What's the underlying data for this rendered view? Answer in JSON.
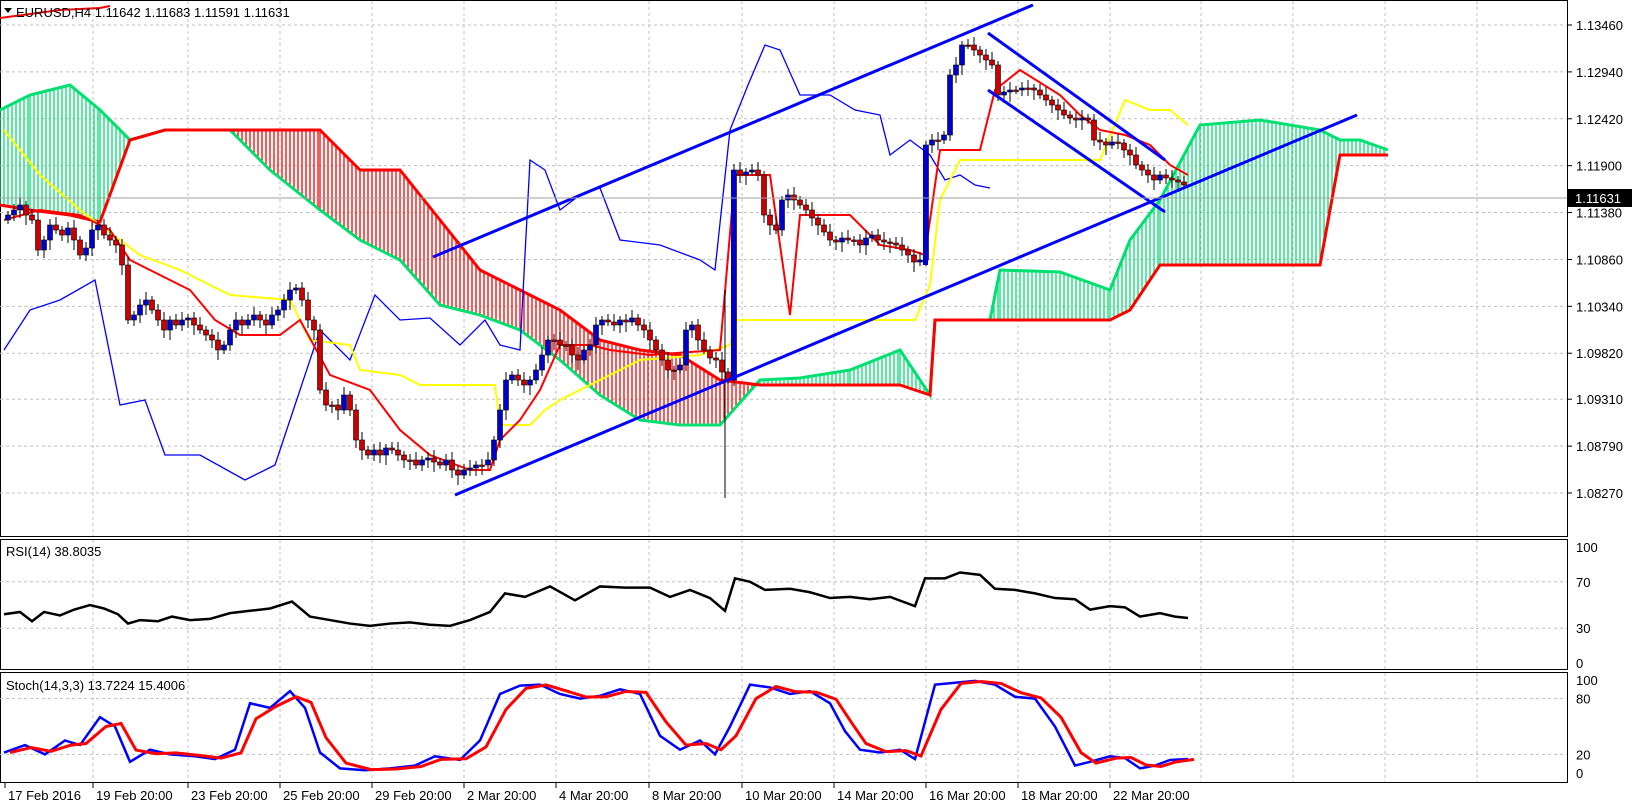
{
  "main_panel": {
    "symbol_line": "EURUSD,H4  1.11642 1.11683 1.11591 1.11631",
    "current_price": "1.11631",
    "price_labels": [
      "1.13460",
      "1.12940",
      "1.12420",
      "1.11900",
      "1.11380",
      "1.10860",
      "1.10340",
      "1.09820",
      "1.09310",
      "1.08790",
      "1.08270"
    ]
  },
  "rsi_panel": {
    "label": "RSI(14) 38.8035",
    "levels": [
      "100",
      "70",
      "30",
      "0"
    ]
  },
  "stoch_panel": {
    "label": "Stoch(14,3,3) 13.7224 15.4006",
    "levels": [
      "100",
      "80",
      "20",
      "0"
    ]
  },
  "time_axis": {
    "labels": [
      "17 Feb 2016",
      "19 Feb 20:00",
      "23 Feb 20:00",
      "25 Feb 20:00",
      "29 Feb 20:00",
      "2 Mar 20:00",
      "4 Mar 20:00",
      "8 Mar 20:00",
      "10 Mar 20:00",
      "14 Mar 20:00",
      "16 Mar 20:00",
      "18 Mar 20:00",
      "22 Mar 20:00"
    ]
  },
  "colors": {
    "bull_candle": "#0000cc",
    "bear_candle": "#cc0000",
    "tenkan": "#ff0000",
    "kijun": "#ffff00",
    "chikou": "#0000ff",
    "cloud_bear": "#ff0000",
    "cloud_bull": "#00e070",
    "channel": "#0000ff",
    "rsi_line": "#000000",
    "stoch_main": "#0000ff",
    "stoch_signal": "#ff0000",
    "grid": "#c0c0c0"
  }
}
